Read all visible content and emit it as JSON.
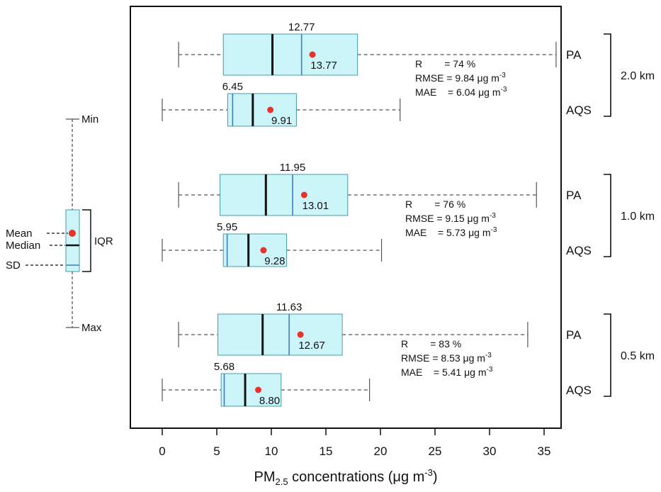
{
  "colors": {
    "box_fill": "#ccf5fa",
    "box_stroke": "#4a9aa8",
    "median": "#111111",
    "sd": "#3f7fc0",
    "mean": "#e8332a"
  },
  "legend": {
    "min": "Min",
    "max": "Max",
    "mean": "Mean",
    "median": "Median",
    "sd": "SD",
    "iqr": "IQR"
  },
  "chart_data": {
    "type": "boxplot",
    "orientation": "horizontal",
    "xlim": [
      -2,
      38
    ],
    "xticks": [
      0,
      5,
      10,
      15,
      20,
      25,
      30,
      35
    ],
    "xticklabels": [
      "0",
      "5",
      "10",
      "15",
      "20",
      "25",
      "30",
      "35"
    ],
    "xlabel": {
      "prefix": "PM",
      "subscript": "2.5",
      "middle": " concentrations (μg m",
      "superscript": "-3",
      "suffix": ")"
    },
    "grid": false,
    "groups": [
      {
        "label": "2.0 km",
        "stats": {
          "r": "R        = 74 %",
          "rmse_text": "RMSE = 9.84 μg m",
          "mae_text": "MAE    = 6.04 μg m",
          "unit_sup": "-3"
        },
        "boxes": [
          {
            "name": "PA",
            "min": 1.5,
            "q1": 5.6,
            "median": 10.1,
            "q3": 17.9,
            "max": 36.1,
            "sd": 12.77,
            "mean": 13.77,
            "sd_label": "12.77",
            "mean_label": "13.77"
          },
          {
            "name": "AQS",
            "min": 0.0,
            "q1": 6.0,
            "median": 8.3,
            "q3": 12.3,
            "max": 21.8,
            "sd": 6.45,
            "mean": 9.91,
            "sd_label": "6.45",
            "mean_label": "9.91"
          }
        ]
      },
      {
        "label": "1.0 km",
        "stats": {
          "r": "R        = 76 %",
          "rmse_text": "RMSE = 9.15 μg m",
          "mae_text": "MAE    = 5.73 μg m",
          "unit_sup": "-3"
        },
        "boxes": [
          {
            "name": "PA",
            "min": 1.5,
            "q1": 5.3,
            "median": 9.5,
            "q3": 17.0,
            "max": 34.3,
            "sd": 11.95,
            "mean": 13.01,
            "sd_label": "11.95",
            "mean_label": "13.01"
          },
          {
            "name": "AQS",
            "min": 0.0,
            "q1": 5.6,
            "median": 7.9,
            "q3": 11.4,
            "max": 20.1,
            "sd": 5.95,
            "mean": 9.28,
            "sd_label": "5.95",
            "mean_label": "9.28"
          }
        ]
      },
      {
        "label": "0.5 km",
        "stats": {
          "r": "R        = 83 %",
          "rmse_text": "RMSE = 8.53 μg m",
          "mae_text": "MAE    = 5.41 μg m",
          "unit_sup": "-3"
        },
        "boxes": [
          {
            "name": "PA",
            "min": 1.5,
            "q1": 5.1,
            "median": 9.2,
            "q3": 16.5,
            "max": 33.5,
            "sd": 11.63,
            "mean": 12.67,
            "sd_label": "11.63",
            "mean_label": "12.67"
          },
          {
            "name": "AQS",
            "min": 0.0,
            "q1": 5.4,
            "median": 7.6,
            "q3": 10.9,
            "max": 19.0,
            "sd": 5.68,
            "mean": 8.8,
            "sd_label": "5.68",
            "mean_label": "8.80"
          }
        ]
      }
    ]
  }
}
